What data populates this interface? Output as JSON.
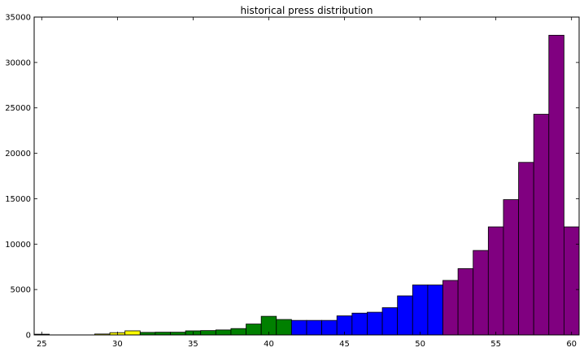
{
  "chart_data": {
    "type": "bar",
    "title": "historical press distribution",
    "xlabel": "",
    "ylabel": "",
    "xlim": [
      24.5,
      60.5
    ],
    "ylim": [
      0,
      35000
    ],
    "xticks": [
      25,
      30,
      35,
      40,
      45,
      50,
      55,
      60
    ],
    "yticks": [
      0,
      5000,
      10000,
      15000,
      20000,
      25000,
      30000,
      35000
    ],
    "grid": false,
    "legend": "none",
    "bin_width": 1,
    "colors": {
      "yellow": "#ffff00",
      "green": "#008000",
      "blue": "#0000ff",
      "purple": "#800080"
    },
    "bins": [
      {
        "x": 25,
        "value": 80,
        "color": "purple"
      },
      {
        "x": 26,
        "value": 0,
        "color": "purple"
      },
      {
        "x": 27,
        "value": 0,
        "color": "purple"
      },
      {
        "x": 28,
        "value": 0,
        "color": "purple"
      },
      {
        "x": 29,
        "value": 100,
        "color": "yellow"
      },
      {
        "x": 30,
        "value": 250,
        "color": "yellow"
      },
      {
        "x": 31,
        "value": 450,
        "color": "yellow"
      },
      {
        "x": 32,
        "value": 280,
        "color": "green"
      },
      {
        "x": 33,
        "value": 300,
        "color": "green"
      },
      {
        "x": 34,
        "value": 300,
        "color": "green"
      },
      {
        "x": 35,
        "value": 450,
        "color": "green"
      },
      {
        "x": 36,
        "value": 480,
        "color": "green"
      },
      {
        "x": 37,
        "value": 550,
        "color": "green"
      },
      {
        "x": 38,
        "value": 700,
        "color": "green"
      },
      {
        "x": 39,
        "value": 1200,
        "color": "green"
      },
      {
        "x": 40,
        "value": 2050,
        "color": "green"
      },
      {
        "x": 41,
        "value": 1700,
        "color": "green"
      },
      {
        "x": 42,
        "value": 1600,
        "color": "blue"
      },
      {
        "x": 43,
        "value": 1600,
        "color": "blue"
      },
      {
        "x": 44,
        "value": 1600,
        "color": "blue"
      },
      {
        "x": 45,
        "value": 2100,
        "color": "blue"
      },
      {
        "x": 46,
        "value": 2400,
        "color": "blue"
      },
      {
        "x": 47,
        "value": 2500,
        "color": "blue"
      },
      {
        "x": 48,
        "value": 3000,
        "color": "blue"
      },
      {
        "x": 49,
        "value": 4300,
        "color": "blue"
      },
      {
        "x": 50,
        "value": 5500,
        "color": "blue"
      },
      {
        "x": 51,
        "value": 5500,
        "color": "blue"
      },
      {
        "x": 52,
        "value": 6000,
        "color": "purple"
      },
      {
        "x": 53,
        "value": 7300,
        "color": "purple"
      },
      {
        "x": 54,
        "value": 9300,
        "color": "purple"
      },
      {
        "x": 55,
        "value": 11900,
        "color": "purple"
      },
      {
        "x": 56,
        "value": 14900,
        "color": "purple"
      },
      {
        "x": 57,
        "value": 19000,
        "color": "purple"
      },
      {
        "x": 58,
        "value": 24300,
        "color": "purple"
      },
      {
        "x": 59,
        "value": 33000,
        "color": "purple"
      },
      {
        "x": 60,
        "value": 11900,
        "color": "purple"
      }
    ]
  }
}
